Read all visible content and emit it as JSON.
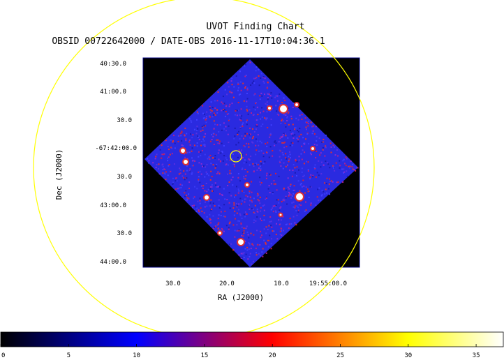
{
  "chart_data": {
    "type": "heatmap",
    "title": "UVOT Finding Chart",
    "subtitle": "OBSID 00722642000 / DATE-OBS 2016-11-17T10:04:36.1",
    "xlabel": "RA (J2000)",
    "ylabel": "Dec (J2000)",
    "x_ticks": [
      "30.0",
      "20.0",
      "10.0",
      "19:55:00.0"
    ],
    "y_ticks": [
      "40:30.0",
      "41:00.0",
      "30.0",
      "-67:42:00.0",
      "30.0",
      "43:00.0",
      "30.0",
      "44:00.0"
    ],
    "colorbar": {
      "ticks": [
        "0",
        "5",
        "10",
        "15",
        "20",
        "25",
        "30",
        "35"
      ],
      "range": [
        0,
        37
      ],
      "stops": [
        "#000000",
        "#0000ff",
        "#ff0000",
        "#ffff00",
        "#ffffff"
      ]
    },
    "marker_color": "#ffff00",
    "background_color": "#2a2ae0"
  }
}
